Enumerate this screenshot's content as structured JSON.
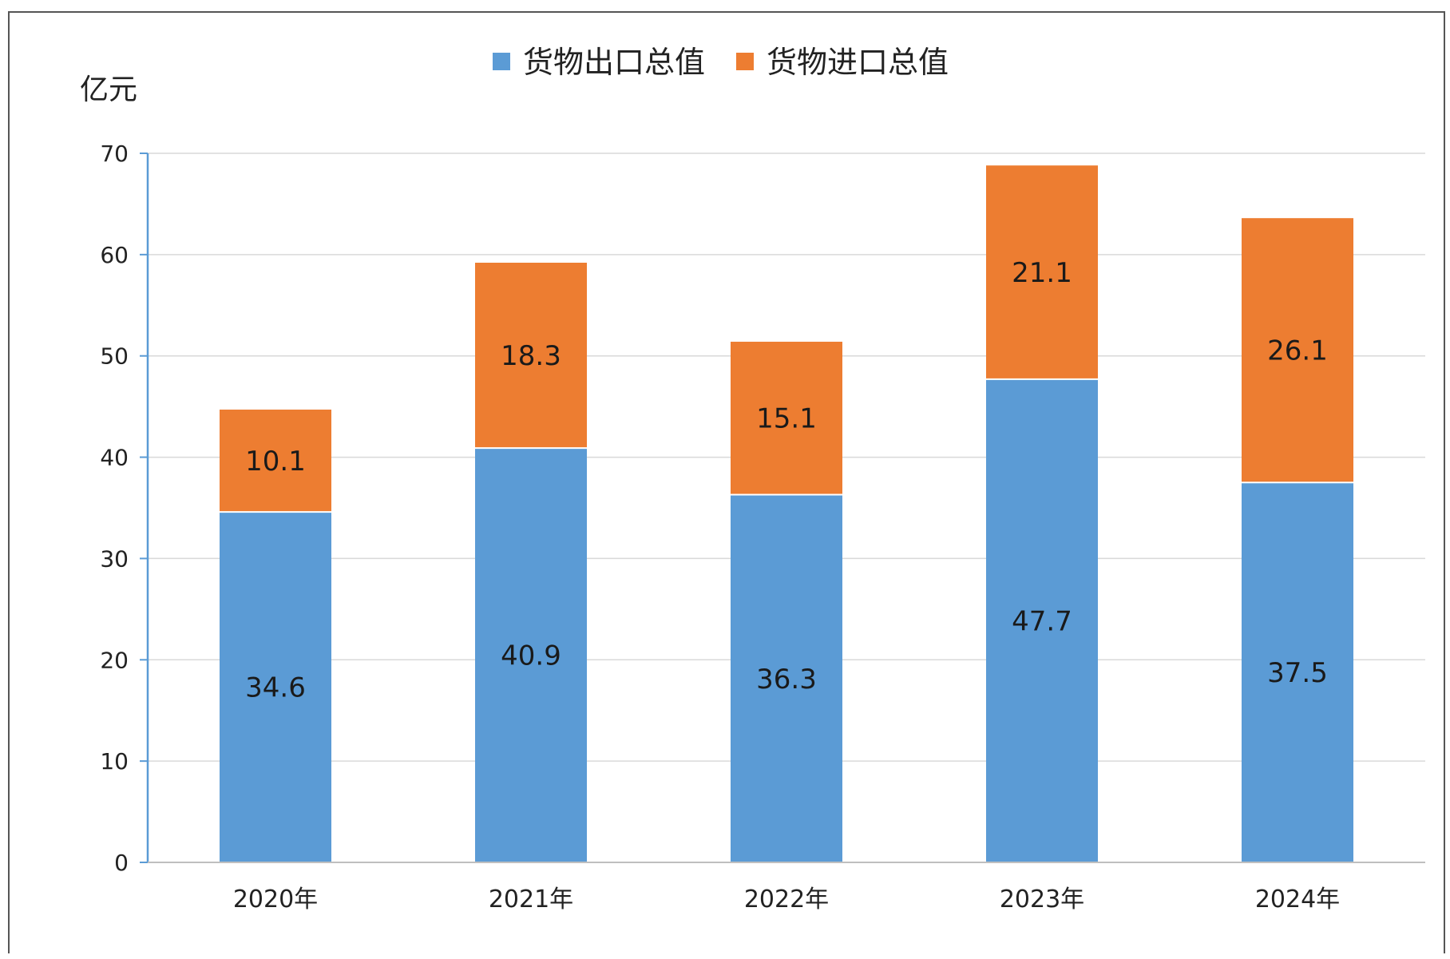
{
  "chart_data": {
    "type": "bar",
    "stacked": true,
    "categories": [
      "2020年",
      "2021年",
      "2022年",
      "2023年",
      "2024年"
    ],
    "series": [
      {
        "name": "货物出口总值",
        "color": "#5b9bd5",
        "values": [
          34.6,
          40.9,
          36.3,
          47.7,
          37.5
        ]
      },
      {
        "name": "货物进口总值",
        "color": "#ed7d31",
        "values": [
          10.1,
          18.3,
          15.1,
          21.1,
          26.1
        ]
      }
    ],
    "ylabel": "亿元",
    "ylim": [
      0,
      70
    ],
    "yticks": [
      0,
      10,
      20,
      30,
      40,
      50,
      60,
      70
    ],
    "grid": true,
    "legend": "top-center"
  }
}
